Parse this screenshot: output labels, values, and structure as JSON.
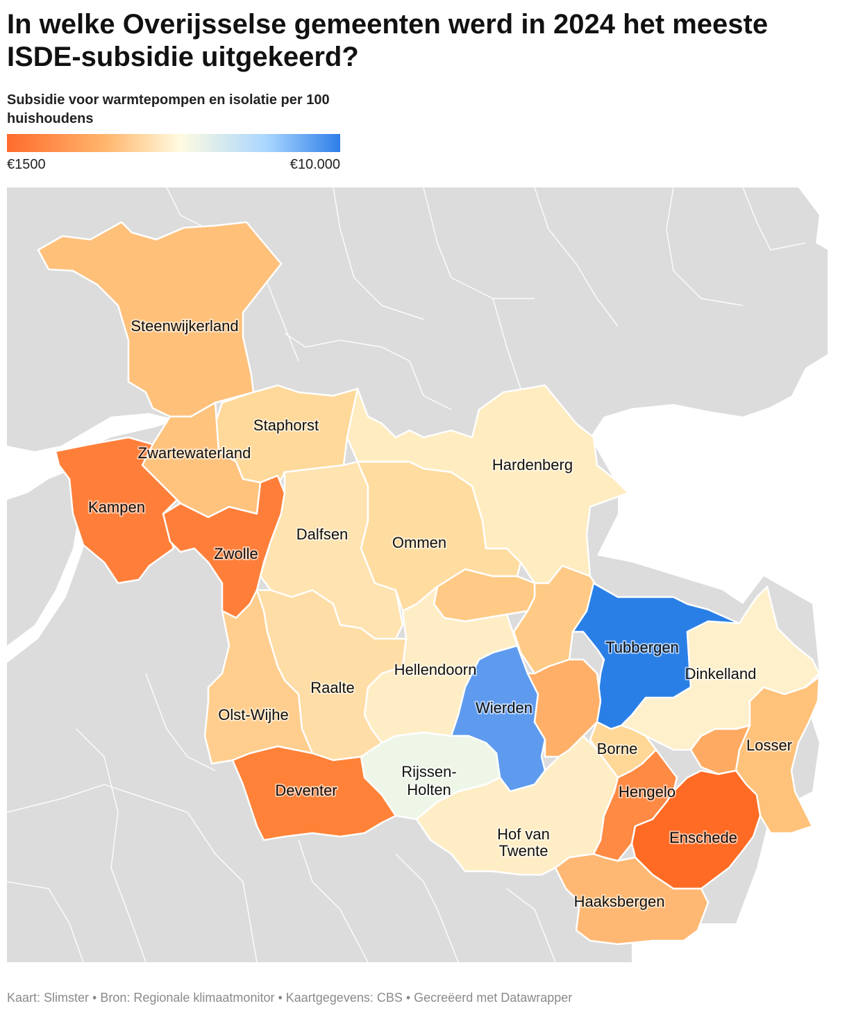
{
  "header": {
    "title": "In welke Overijsselse gemeenten werd in 2024 het meeste ISDE-subsidie uitgekeerd?",
    "subtitle": "Subsidie voor warmtepompen en isolatie per 100 huishoudens"
  },
  "legend": {
    "min_label": "€1500",
    "max_label": "€10.000",
    "gradient_colors": [
      "#ff6b2c",
      "#ffb76e",
      "#fffbe0",
      "#a9d6ff",
      "#2d7ee8"
    ]
  },
  "colors": {
    "background_land": "#dcdcdc",
    "water": "#ffffff",
    "border": "#ffffff"
  },
  "map": {
    "municipalities": [
      {
        "id": "steenwijkerland",
        "label": "Steenwijkerland",
        "color": "#ffc07a"
      },
      {
        "id": "staphorst",
        "label": "Staphorst",
        "color": "#ffd99a"
      },
      {
        "id": "zwartewaterland",
        "label": "Zwartewaterland",
        "color": "#ffc37e"
      },
      {
        "id": "kampen",
        "label": "Kampen",
        "color": "#ff7f3a"
      },
      {
        "id": "zwolle",
        "label": "Zwolle",
        "color": "#ff7f3a"
      },
      {
        "id": "dalfsen",
        "label": "Dalfsen",
        "color": "#ffe3b0"
      },
      {
        "id": "ommen",
        "label": "Ommen",
        "color": "#ffdca0"
      },
      {
        "id": "hardenberg",
        "label": "Hardenberg",
        "color": "#ffecc0"
      },
      {
        "id": "twenterand",
        "label": "",
        "color": "#ffca85"
      },
      {
        "id": "tubbergen",
        "label": "Tubbergen",
        "color": "#2a7fe6"
      },
      {
        "id": "dinkelland",
        "label": "Dinkelland",
        "color": "#fff0cc"
      },
      {
        "id": "hellendoorn",
        "label": "Hellendoorn",
        "color": "#ffedc6"
      },
      {
        "id": "raalte",
        "label": "Raalte",
        "color": "#ffddA6"
      },
      {
        "id": "olst-wijhe",
        "label": "Olst-Wijhe",
        "color": "#ffce8e"
      },
      {
        "id": "wierden",
        "label": "Wierden",
        "color": "#5e9bee"
      },
      {
        "id": "almelo",
        "label": "",
        "color": "#ffaf68"
      },
      {
        "id": "borne",
        "label": "Borne",
        "color": "#ffd796"
      },
      {
        "id": "losser",
        "label": "Losser",
        "color": "#ffc27a"
      },
      {
        "id": "oldenzaal",
        "label": "",
        "color": "#ffaa62"
      },
      {
        "id": "rijssen-holten",
        "label": "Rijssen-Holten",
        "color": "#eef6e8"
      },
      {
        "id": "deventer",
        "label": "Deventer",
        "color": "#ff8238"
      },
      {
        "id": "hof-van-twente",
        "label": "Hof van Twente",
        "color": "#ffedc6"
      },
      {
        "id": "hengelo",
        "label": "Hengelo",
        "color": "#ff8a44"
      },
      {
        "id": "enschede",
        "label": "Enschede",
        "color": "#ff6b24"
      },
      {
        "id": "haaksbergen",
        "label": "Haaksbergen",
        "color": "#ffb873"
      }
    ]
  },
  "footer": {
    "text": "Kaart: Slimster • Bron: Regionale klimaatmonitor • Kaartgegevens: CBS • Gecreëerd met Datawrapper"
  }
}
